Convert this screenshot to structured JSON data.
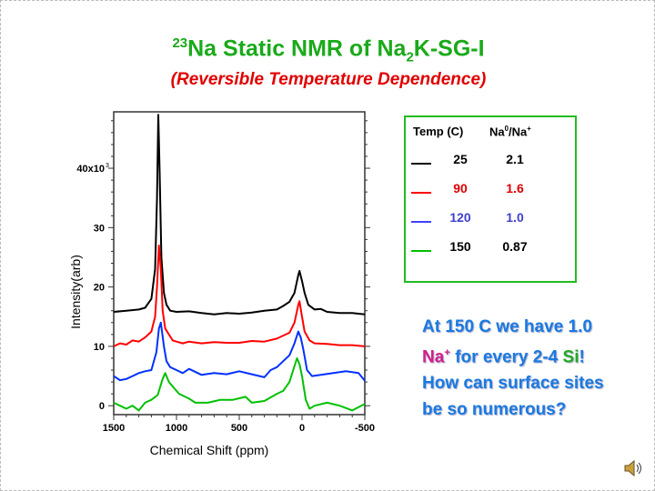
{
  "slide": {
    "title_sup": "23",
    "title_pre": "Na Static NMR of Na",
    "title_sub": "2",
    "title_post": "K-SG-I",
    "subtitle": "(Reversible Temperature Dependence)",
    "note": {
      "line1": "At 150 C we have 1.0",
      "line2_na": "Na",
      "line2_sup": "+",
      "line2_mid": " for every 2-4 ",
      "line2_si": "Si",
      "line2_end": "!",
      "line3": "How can surface sites",
      "line4": "be so numerous?"
    },
    "speaker_icon": "speaker-icon"
  },
  "legend": {
    "col1": "Temp (C)",
    "col2_pre": "Na",
    "col2_sup1": "0",
    "col2_mid": "/Na",
    "col2_sup2": "+",
    "rows": [
      {
        "temp": "25",
        "ratio": "2.1",
        "color": "#000000",
        "text_color": "#000000"
      },
      {
        "temp": "90",
        "ratio": "1.6",
        "color": "#ff0000",
        "text_color": "#dd0000"
      },
      {
        "temp": "120",
        "ratio": "1.0",
        "color": "#4040ff",
        "text_color": "#4040cc"
      },
      {
        "temp": "150",
        "ratio": "0.87",
        "color": "#00c000",
        "text_color": "#000000"
      }
    ]
  },
  "chart_data": {
    "type": "line",
    "xlabel": "Chemical Shift (ppm)",
    "ylabel": "Intensity(arb)",
    "xlim": [
      1500,
      -500
    ],
    "ylim": [
      -1.5,
      49.5
    ],
    "x_ticks": [
      "1500",
      "1000",
      "500",
      "0",
      "-500"
    ],
    "x_tick_values": [
      1500,
      1000,
      500,
      0,
      -500
    ],
    "y_ticks": [
      "0",
      "10",
      "20",
      "30",
      "40x10"
    ],
    "y_tick_sup": "3",
    "y_tick_values": [
      0,
      10,
      20,
      30,
      40
    ],
    "y_unit": "x10^3",
    "series": [
      {
        "color": "#000000",
        "points": [
          [
            1500,
            15.8
          ],
          [
            1400,
            16
          ],
          [
            1300,
            16.2
          ],
          [
            1250,
            16.5
          ],
          [
            1200,
            18
          ],
          [
            1170,
            23
          ],
          [
            1155,
            35
          ],
          [
            1145,
            49
          ],
          [
            1135,
            40
          ],
          [
            1120,
            25
          ],
          [
            1100,
            19
          ],
          [
            1080,
            17
          ],
          [
            1050,
            16
          ],
          [
            1000,
            15.8
          ],
          [
            900,
            15.9
          ],
          [
            800,
            15.6
          ],
          [
            700,
            15.4
          ],
          [
            600,
            15.6
          ],
          [
            500,
            15.5
          ],
          [
            400,
            15.7
          ],
          [
            300,
            16
          ],
          [
            200,
            16.2
          ],
          [
            150,
            16.8
          ],
          [
            100,
            17.5
          ],
          [
            60,
            19
          ],
          [
            30,
            22
          ],
          [
            20,
            22.7
          ],
          [
            0,
            21
          ],
          [
            -20,
            19
          ],
          [
            -50,
            17
          ],
          [
            -100,
            16.2
          ],
          [
            -150,
            16.3
          ],
          [
            -200,
            15.8
          ],
          [
            -300,
            15.6
          ],
          [
            -400,
            15.6
          ],
          [
            -500,
            15.4
          ]
        ]
      },
      {
        "color": "#ff0000",
        "points": [
          [
            1500,
            10
          ],
          [
            1450,
            10.5
          ],
          [
            1400,
            10.3
          ],
          [
            1350,
            11
          ],
          [
            1300,
            10.8
          ],
          [
            1250,
            11.5
          ],
          [
            1200,
            12.5
          ],
          [
            1170,
            15
          ],
          [
            1155,
            20
          ],
          [
            1140,
            27
          ],
          [
            1125,
            23
          ],
          [
            1110,
            16
          ],
          [
            1090,
            13
          ],
          [
            1060,
            12
          ],
          [
            1030,
            11
          ],
          [
            1000,
            10.8
          ],
          [
            950,
            10.5
          ],
          [
            900,
            10.8
          ],
          [
            800,
            10.5
          ],
          [
            700,
            10.7
          ],
          [
            600,
            10.6
          ],
          [
            500,
            10.6
          ],
          [
            400,
            10.9
          ],
          [
            300,
            10.8
          ],
          [
            200,
            11.3
          ],
          [
            100,
            12.3
          ],
          [
            60,
            14
          ],
          [
            30,
            17
          ],
          [
            20,
            17.6
          ],
          [
            0,
            15
          ],
          [
            -20,
            12.5
          ],
          [
            -60,
            11
          ],
          [
            -100,
            10.5
          ],
          [
            -200,
            10.4
          ],
          [
            -300,
            10.2
          ],
          [
            -400,
            10.2
          ],
          [
            -500,
            10
          ]
        ]
      },
      {
        "color": "#0030ff",
        "points": [
          [
            1500,
            5
          ],
          [
            1450,
            4.3
          ],
          [
            1400,
            4.5
          ],
          [
            1350,
            5
          ],
          [
            1300,
            5.5
          ],
          [
            1250,
            5.8
          ],
          [
            1200,
            6
          ],
          [
            1160,
            9
          ],
          [
            1140,
            13
          ],
          [
            1125,
            14
          ],
          [
            1100,
            10
          ],
          [
            1080,
            7.5
          ],
          [
            1050,
            6.5
          ],
          [
            1000,
            6
          ],
          [
            950,
            5.5
          ],
          [
            900,
            6.2
          ],
          [
            800,
            5.2
          ],
          [
            700,
            5.5
          ],
          [
            600,
            5.3
          ],
          [
            500,
            5.8
          ],
          [
            400,
            5.3
          ],
          [
            300,
            4.8
          ],
          [
            250,
            6
          ],
          [
            200,
            6.5
          ],
          [
            150,
            7.5
          ],
          [
            100,
            8.5
          ],
          [
            60,
            10.5
          ],
          [
            30,
            12.5
          ],
          [
            10,
            11.5
          ],
          [
            -10,
            9.5
          ],
          [
            -40,
            6
          ],
          [
            -80,
            5
          ],
          [
            -150,
            5.2
          ],
          [
            -250,
            5.5
          ],
          [
            -350,
            5.8
          ],
          [
            -450,
            5.5
          ],
          [
            -500,
            4.2
          ]
        ]
      },
      {
        "color": "#00c000",
        "points": [
          [
            1500,
            0.5
          ],
          [
            1450,
            0
          ],
          [
            1400,
            -0.5
          ],
          [
            1350,
            0
          ],
          [
            1300,
            -0.8
          ],
          [
            1250,
            0.5
          ],
          [
            1200,
            1
          ],
          [
            1150,
            1.8
          ],
          [
            1110,
            4.5
          ],
          [
            1090,
            5.5
          ],
          [
            1060,
            4
          ],
          [
            1020,
            3
          ],
          [
            980,
            2
          ],
          [
            900,
            1.2
          ],
          [
            850,
            0.5
          ],
          [
            750,
            0.5
          ],
          [
            650,
            1
          ],
          [
            550,
            1
          ],
          [
            450,
            1.5
          ],
          [
            400,
            0.5
          ],
          [
            300,
            0.8
          ],
          [
            200,
            2
          ],
          [
            150,
            2.5
          ],
          [
            100,
            4
          ],
          [
            70,
            6
          ],
          [
            40,
            8
          ],
          [
            20,
            7
          ],
          [
            0,
            5
          ],
          [
            -30,
            1
          ],
          [
            -60,
            -0.5
          ],
          [
            -100,
            0
          ],
          [
            -200,
            0.5
          ],
          [
            -300,
            0
          ],
          [
            -400,
            -0.8
          ],
          [
            -500,
            0.3
          ]
        ]
      }
    ]
  }
}
